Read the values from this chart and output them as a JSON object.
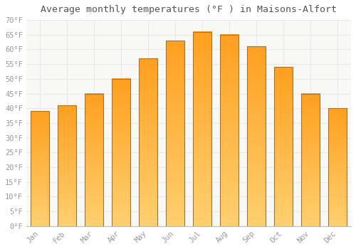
{
  "title": "Average monthly temperatures (°F ) in Maisons-Alfort",
  "months": [
    "Jan",
    "Feb",
    "Mar",
    "Apr",
    "May",
    "Jun",
    "Jul",
    "Aug",
    "Sep",
    "Oct",
    "Nov",
    "Dec"
  ],
  "values": [
    39,
    41,
    45,
    50,
    57,
    63,
    66,
    65,
    61,
    54,
    45,
    40
  ],
  "bar_color": "#FFA500",
  "bar_color_light": "#FFD080",
  "bar_color_dark": "#FFA020",
  "bar_edge_color": "#C07000",
  "ylim": [
    0,
    70
  ],
  "yticks": [
    0,
    5,
    10,
    15,
    20,
    25,
    30,
    35,
    40,
    45,
    50,
    55,
    60,
    65,
    70
  ],
  "ytick_labels": [
    "0°F",
    "5°F",
    "10°F",
    "15°F",
    "20°F",
    "25°F",
    "30°F",
    "35°F",
    "40°F",
    "45°F",
    "50°F",
    "55°F",
    "60°F",
    "65°F",
    "70°F"
  ],
  "background_color": "#FFFFFF",
  "plot_bg_color": "#F8F8F5",
  "grid_color": "#E8E8E8",
  "title_fontsize": 9.5,
  "tick_fontsize": 7.5,
  "title_color": "#555555",
  "tick_color": "#999999"
}
